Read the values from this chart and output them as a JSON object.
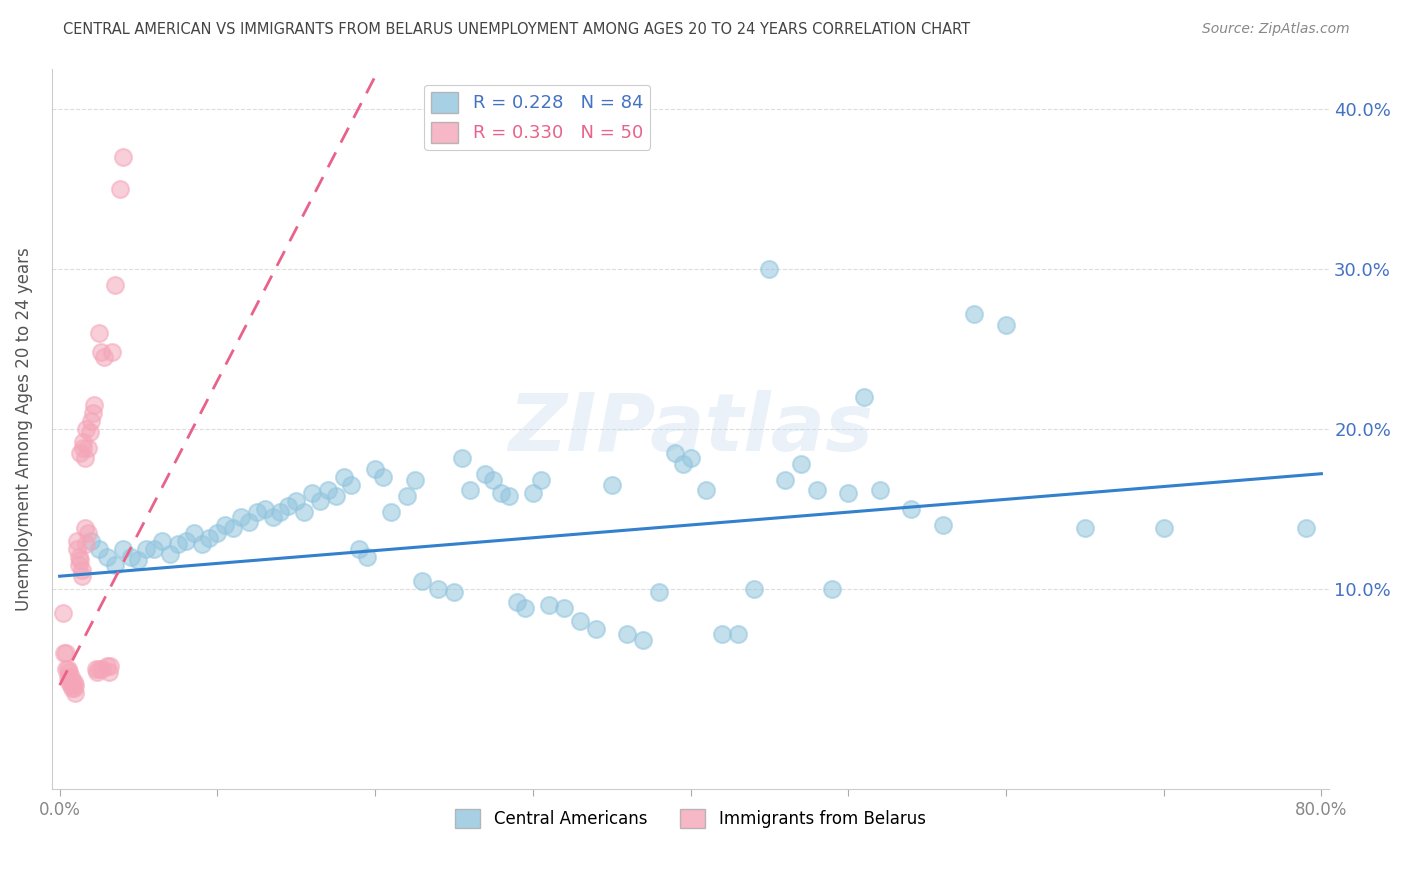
{
  "title": "CENTRAL AMERICAN VS IMMIGRANTS FROM BELARUS UNEMPLOYMENT AMONG AGES 20 TO 24 YEARS CORRELATION CHART",
  "source": "Source: ZipAtlas.com",
  "xlabel": "",
  "ylabel": "Unemployment Among Ages 20 to 24 years",
  "watermark": "ZIPatlas",
  "xlim": [
    -0.005,
    0.805
  ],
  "ylim": [
    -0.025,
    0.425
  ],
  "xticks": [
    0.0,
    0.1,
    0.2,
    0.3,
    0.4,
    0.5,
    0.6,
    0.7,
    0.8
  ],
  "yticks_right": [
    0.1,
    0.2,
    0.3,
    0.4
  ],
  "ytick_labels_right": [
    "10.0%",
    "20.0%",
    "30.0%",
    "40.0%"
  ],
  "xtick_labels": [
    "0.0%",
    "",
    "",
    "",
    "",
    "",
    "",
    "",
    "80.0%"
  ],
  "R_blue": 0.228,
  "N_blue": 84,
  "R_pink": 0.33,
  "N_pink": 50,
  "blue_color": "#92C5DE",
  "pink_color": "#F4A6B8",
  "trend_blue": "#3380CC",
  "trend_pink": "#E8628A",
  "title_color": "#444444",
  "source_color": "#888888",
  "axis_label_color": "#555555",
  "tick_color_right": "#4472C4",
  "tick_color_x": "#888888",
  "background_color": "#ffffff",
  "grid_color": "#dddddd",
  "legend_label_blue": "Central Americans",
  "legend_label_pink": "Immigrants from Belarus",
  "blue_scatter_x": [
    0.02,
    0.025,
    0.03,
    0.035,
    0.04,
    0.045,
    0.05,
    0.055,
    0.06,
    0.065,
    0.07,
    0.075,
    0.08,
    0.085,
    0.09,
    0.095,
    0.1,
    0.105,
    0.11,
    0.115,
    0.12,
    0.125,
    0.13,
    0.135,
    0.14,
    0.145,
    0.15,
    0.155,
    0.16,
    0.165,
    0.17,
    0.175,
    0.18,
    0.185,
    0.19,
    0.195,
    0.2,
    0.205,
    0.21,
    0.22,
    0.225,
    0.23,
    0.24,
    0.25,
    0.255,
    0.26,
    0.27,
    0.275,
    0.28,
    0.285,
    0.29,
    0.295,
    0.3,
    0.305,
    0.31,
    0.32,
    0.33,
    0.34,
    0.35,
    0.36,
    0.37,
    0.38,
    0.39,
    0.395,
    0.4,
    0.41,
    0.42,
    0.43,
    0.44,
    0.45,
    0.46,
    0.47,
    0.48,
    0.49,
    0.5,
    0.51,
    0.52,
    0.54,
    0.56,
    0.58,
    0.6,
    0.65,
    0.7,
    0.79
  ],
  "blue_scatter_y": [
    0.13,
    0.125,
    0.12,
    0.115,
    0.125,
    0.12,
    0.118,
    0.125,
    0.125,
    0.13,
    0.122,
    0.128,
    0.13,
    0.135,
    0.128,
    0.132,
    0.135,
    0.14,
    0.138,
    0.145,
    0.142,
    0.148,
    0.15,
    0.145,
    0.148,
    0.152,
    0.155,
    0.148,
    0.16,
    0.155,
    0.162,
    0.158,
    0.17,
    0.165,
    0.125,
    0.12,
    0.175,
    0.17,
    0.148,
    0.158,
    0.168,
    0.105,
    0.1,
    0.098,
    0.182,
    0.162,
    0.172,
    0.168,
    0.16,
    0.158,
    0.092,
    0.088,
    0.16,
    0.168,
    0.09,
    0.088,
    0.08,
    0.075,
    0.165,
    0.072,
    0.068,
    0.098,
    0.185,
    0.178,
    0.182,
    0.162,
    0.072,
    0.072,
    0.1,
    0.3,
    0.168,
    0.178,
    0.162,
    0.1,
    0.16,
    0.22,
    0.162,
    0.15,
    0.14,
    0.272,
    0.265,
    0.138,
    0.138,
    0.138
  ],
  "pink_scatter_x": [
    0.002,
    0.003,
    0.004,
    0.004,
    0.005,
    0.005,
    0.006,
    0.006,
    0.007,
    0.007,
    0.008,
    0.008,
    0.009,
    0.009,
    0.01,
    0.01,
    0.011,
    0.011,
    0.012,
    0.012,
    0.013,
    0.013,
    0.014,
    0.014,
    0.015,
    0.015,
    0.016,
    0.016,
    0.017,
    0.017,
    0.018,
    0.018,
    0.019,
    0.02,
    0.021,
    0.022,
    0.023,
    0.024,
    0.025,
    0.025,
    0.026,
    0.027,
    0.028,
    0.03,
    0.031,
    0.032,
    0.033,
    0.035,
    0.038,
    0.04
  ],
  "pink_scatter_y": [
    0.085,
    0.06,
    0.06,
    0.05,
    0.05,
    0.045,
    0.048,
    0.042,
    0.045,
    0.04,
    0.042,
    0.038,
    0.042,
    0.038,
    0.04,
    0.035,
    0.13,
    0.125,
    0.12,
    0.115,
    0.185,
    0.118,
    0.112,
    0.108,
    0.188,
    0.192,
    0.182,
    0.138,
    0.2,
    0.128,
    0.135,
    0.188,
    0.198,
    0.205,
    0.21,
    0.215,
    0.05,
    0.048,
    0.05,
    0.26,
    0.248,
    0.05,
    0.245,
    0.052,
    0.048,
    0.052,
    0.248,
    0.29,
    0.35,
    0.37
  ],
  "blue_trend_x0": 0.0,
  "blue_trend_x1": 0.8,
  "blue_trend_y0": 0.108,
  "blue_trend_y1": 0.172,
  "pink_trend_x0": 0.0,
  "pink_trend_x1": 0.2,
  "pink_trend_y0": 0.04,
  "pink_trend_y1": 0.42
}
